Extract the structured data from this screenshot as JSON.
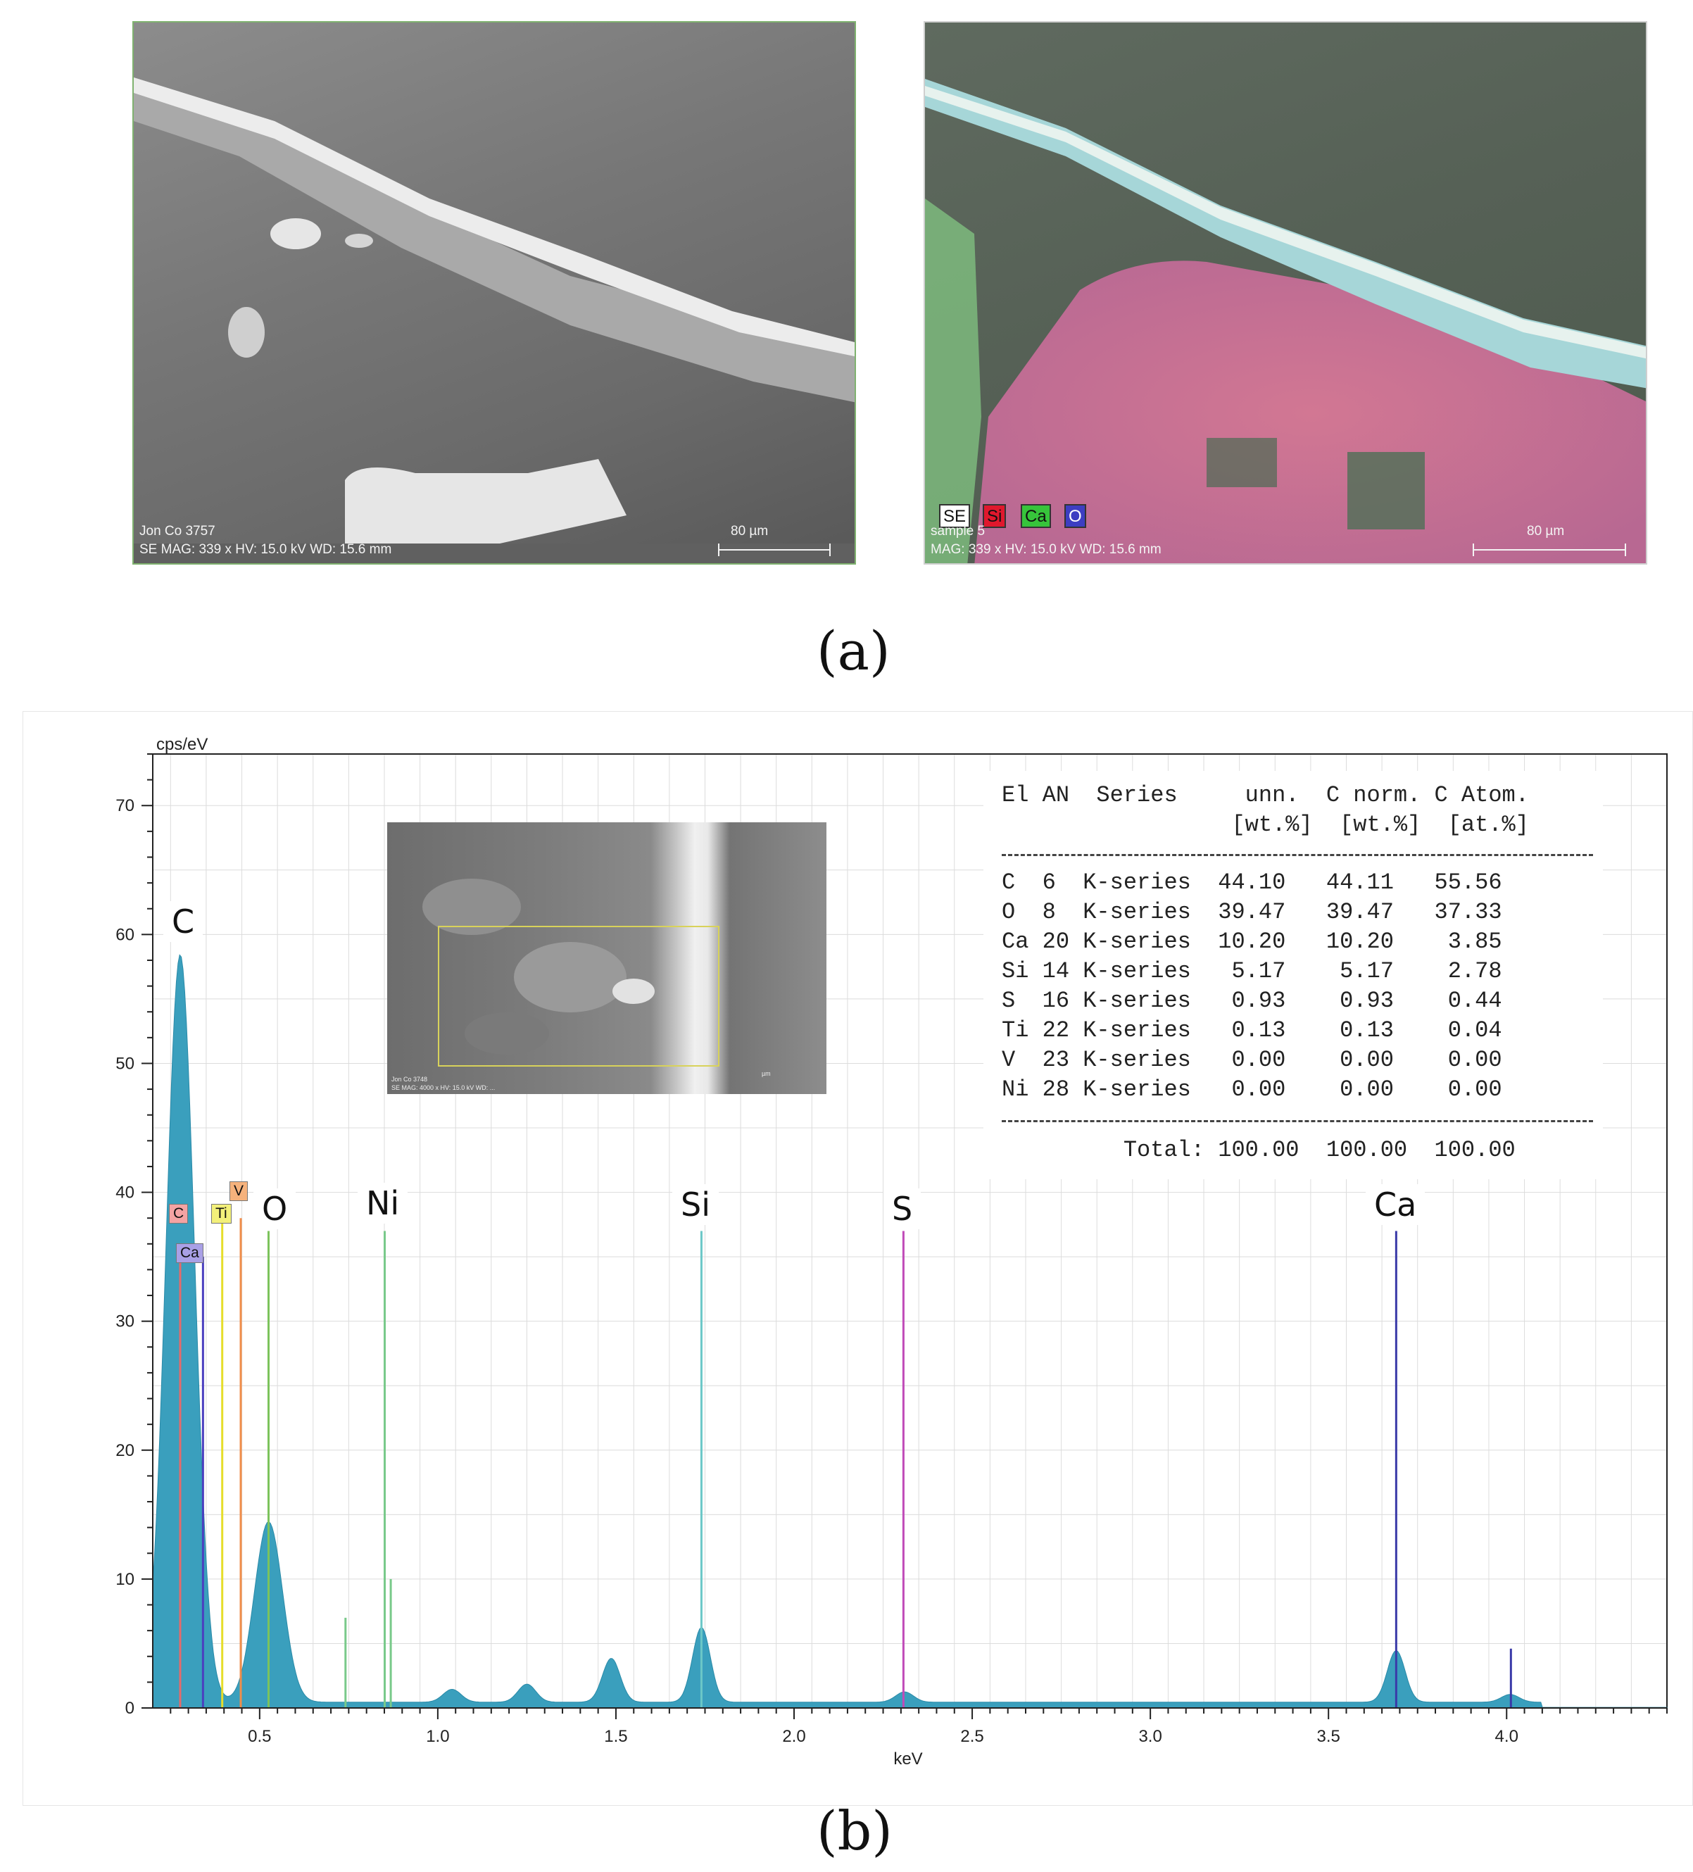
{
  "panel_a": {
    "label": "(a)",
    "left_image": {
      "caption_line1": "Jon Co 3757",
      "caption_line2": "SE  MAG: 339 x  HV: 15.0 kV  WD: 15.6 mm",
      "scale": "80 µm"
    },
    "right_image": {
      "legend": [
        {
          "text": "SE",
          "color": "#ffffff"
        },
        {
          "text": "Si",
          "color": "#e0182d"
        },
        {
          "text": "Ca",
          "color": "#37c43b"
        },
        {
          "text": "O",
          "color": "#3d3ec2"
        }
      ],
      "caption_line1": "sample 5",
      "caption_line2": "MAG: 339 x HV: 15.0 kV WD: 15.6 mm",
      "scale": "80 µm"
    }
  },
  "panel_b": {
    "label": "(b)",
    "inset": {
      "caption_line1": "Jon Co 3748",
      "caption_line2": "SE  MAG: 4000 x  HV: 15.0 kV  WD: ...",
      "scale": "µm"
    },
    "peak_labels": [
      "C",
      "O",
      "Ni",
      "Si",
      "S",
      "Ca"
    ],
    "marker_tags": [
      {
        "text": "C",
        "color": "#f4a3a3"
      },
      {
        "text": "Ca",
        "color": "#a9a0e6"
      },
      {
        "text": "Ti",
        "color": "#f3f07a"
      },
      {
        "text": "V",
        "color": "#f6b27c"
      }
    ],
    "quant_table": {
      "header1": "El AN  Series     unn.  C norm. C Atom.",
      "header2": "                 [wt.%]  [wt.%]  [at.%]",
      "rows": [
        "C  6  K-series  44.10   44.11   55.56",
        "O  8  K-series  39.47   39.47   37.33",
        "Ca 20 K-series  10.20   10.20    3.85",
        "Si 14 K-series   5.17    5.17    2.78",
        "S  16 K-series   0.93    0.93    0.44",
        "Ti 22 K-series   0.13    0.13    0.04",
        "V  23 K-series   0.00    0.00    0.00",
        "Ni 28 K-series   0.00    0.00    0.00"
      ],
      "total": "         Total: 100.00  100.00  100.00"
    }
  },
  "chart_data": {
    "type": "area",
    "xlabel": "keV",
    "ylabel": "cps/eV",
    "xlim": [
      0.2,
      4.45
    ],
    "ylim": [
      0,
      74
    ],
    "x_ticks": [
      0.5,
      1.0,
      1.5,
      2.0,
      2.5,
      3.0,
      3.5,
      4.0
    ],
    "x_tick_labels": [
      "0.5",
      "1.0",
      "1.5",
      "2.0",
      "2.5",
      "3.0",
      "3.5",
      "4.0"
    ],
    "y_ticks": [
      0,
      10,
      20,
      30,
      40,
      50,
      60,
      70
    ],
    "y_tick_labels": [
      "0",
      "10",
      "20",
      "30",
      "40",
      "50",
      "60",
      "70"
    ],
    "spectrum_peaks": [
      {
        "x": 0.277,
        "y": 58
      },
      {
        "x": 0.525,
        "y": 14
      },
      {
        "x": 1.04,
        "y": 1.0
      },
      {
        "x": 1.25,
        "y": 1.4
      },
      {
        "x": 1.487,
        "y": 3.4
      },
      {
        "x": 1.74,
        "y": 5.8
      },
      {
        "x": 2.31,
        "y": 0.8
      },
      {
        "x": 3.69,
        "y": 4.0
      },
      {
        "x": 4.01,
        "y": 0.6
      }
    ],
    "marker_lines": [
      {
        "element": "C",
        "x": 0.277,
        "y": 36,
        "color": "#e46b6b"
      },
      {
        "element": "Ca",
        "x": 0.341,
        "y": 35,
        "color": "#4b3fbf"
      },
      {
        "element": "Ti",
        "x": 0.395,
        "y": 38,
        "color": "#e6dd2a"
      },
      {
        "element": "V",
        "x": 0.447,
        "y": 38,
        "color": "#f08d4a"
      },
      {
        "element": "O",
        "x": 0.525,
        "y": 37,
        "color": "#7cc35c"
      },
      {
        "element": "Ni",
        "x": 0.851,
        "y": 37,
        "color": "#79c98a"
      },
      {
        "element": "Ni",
        "x": 0.741,
        "y": 7,
        "color": "#79c98a"
      },
      {
        "element": "Ni",
        "x": 0.868,
        "y": 10,
        "color": "#79c98a"
      },
      {
        "element": "Si",
        "x": 1.74,
        "y": 37,
        "color": "#6bc7c7"
      },
      {
        "element": "S",
        "x": 2.307,
        "y": 37,
        "color": "#c04bb8"
      },
      {
        "element": "Ca",
        "x": 3.69,
        "y": 37,
        "color": "#3a3aa8"
      },
      {
        "element": "Ca",
        "x": 4.012,
        "y": 4.6,
        "color": "#3a3aa8"
      }
    ]
  }
}
